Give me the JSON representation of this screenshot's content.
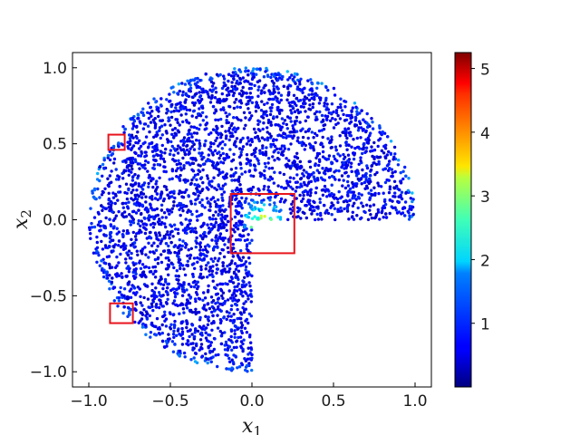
{
  "chart_data": {
    "type": "scatter",
    "description_domain": "unit disk with one quadrant removed (x>0, y<0)",
    "xlabel": "x",
    "xlabel_sub": "1",
    "ylabel": "x",
    "ylabel_sub": "2",
    "xlim": [
      -1.1,
      1.1
    ],
    "ylim": [
      -1.1,
      1.1
    ],
    "x_ticks": [
      -1.0,
      -0.5,
      0.0,
      0.5,
      1.0
    ],
    "x_tick_labels": [
      "−1.0",
      "−0.5",
      "0.0",
      "0.5",
      "1.0"
    ],
    "y_ticks": [
      -1.0,
      -0.5,
      0.0,
      0.5,
      1.0
    ],
    "y_tick_labels": [
      "−1.0",
      "−0.5",
      "0.0",
      "0.5",
      "1.0"
    ],
    "colorbar": {
      "colormap": "jet",
      "min": 0.0,
      "max": 5.25,
      "ticks": [
        1,
        2,
        3,
        4,
        5
      ],
      "tick_labels": [
        "1",
        "2",
        "3",
        "4",
        "5"
      ]
    },
    "highlight_boxes": [
      {
        "x0": -0.88,
        "x1": -0.78,
        "y0": 0.46,
        "y1": 0.56
      },
      {
        "x0": -0.87,
        "x1": -0.73,
        "y0": -0.68,
        "y1": -0.55
      },
      {
        "x0": -0.13,
        "x1": 0.26,
        "y0": -0.22,
        "y1": 0.17
      }
    ],
    "highlight_color": "#e8141c",
    "grid": false
  }
}
